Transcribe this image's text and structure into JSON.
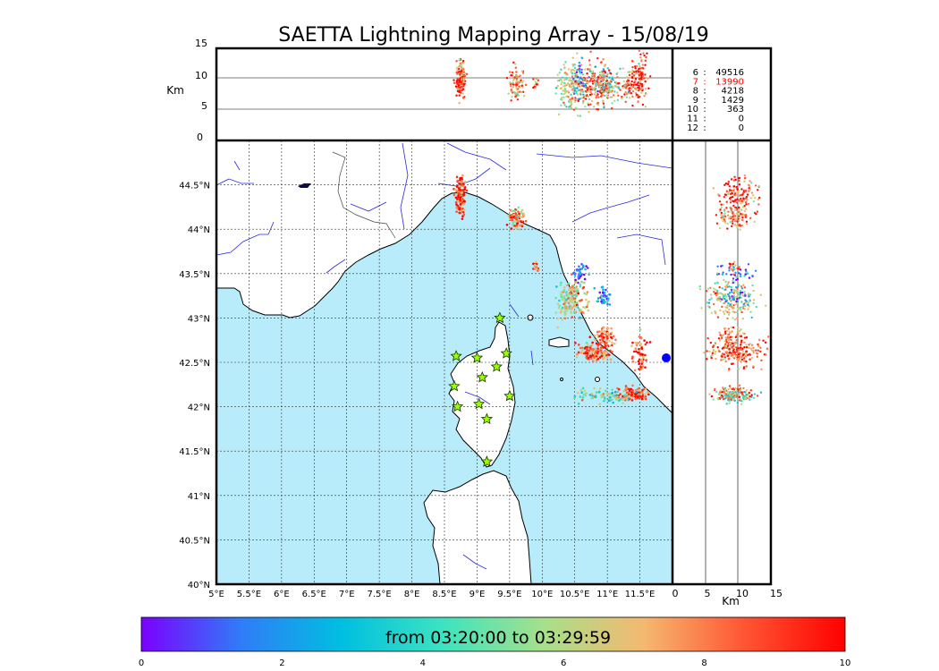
{
  "title": "SAETTA Lightning Mapping Array - 15/08/19",
  "km_label": "Km",
  "colorbar": {
    "label": "from 03:20:00 to 03:29:59",
    "ticks": [
      "0",
      "2",
      "4",
      "6",
      "8",
      "10"
    ],
    "colors": [
      "#7b00ff",
      "#2f7df7",
      "#00bfe0",
      "#3de3c0",
      "#a6e08a",
      "#f5b870",
      "#ff5533",
      "#ff0000"
    ]
  },
  "counts": [
    {
      "k": "6",
      "v": "49516",
      "color": "#000000"
    },
    {
      "k": "7",
      "v": "13990",
      "color": "#ff0000"
    },
    {
      "k": "8",
      "v": "4218",
      "color": "#000000"
    },
    {
      "k": "9",
      "v": "1429",
      "color": "#000000"
    },
    {
      "k": "10",
      "v": "363",
      "color": "#000000"
    },
    {
      "k": "11",
      "v": "0",
      "color": "#000000"
    },
    {
      "k": "12",
      "v": "0",
      "color": "#000000"
    }
  ],
  "chart_data": {
    "type": "scatter",
    "title": "SAETTA Lightning Mapping Array - 15/08/19",
    "map": {
      "lon_range": [
        5.0,
        12.0
      ],
      "lat_range": [
        40.0,
        45.0
      ],
      "x_ticks": [
        "5°E",
        "5.5°E",
        "6°E",
        "6.5°E",
        "7°E",
        "7.5°E",
        "8°E",
        "8.5°E",
        "9°E",
        "9.5°E",
        "10°E",
        "10.5°E",
        "11°E",
        "11.5°E"
      ],
      "y_ticks": [
        "40°N",
        "40.5°N",
        "41°N",
        "41.5°N",
        "42°N",
        "42.5°N",
        "43°N",
        "43.5°N",
        "44°N",
        "44.5°N"
      ],
      "grid": true
    },
    "altitude_axis": {
      "label": "Km",
      "range": [
        0,
        15
      ],
      "ticks": [
        "0",
        "5",
        "10",
        "15"
      ]
    },
    "stations_lonlat": [
      [
        9.35,
        43.0
      ],
      [
        8.68,
        42.57
      ],
      [
        9.0,
        42.55
      ],
      [
        9.45,
        42.6
      ],
      [
        9.3,
        42.45
      ],
      [
        9.08,
        42.33
      ],
      [
        8.65,
        42.23
      ],
      [
        9.5,
        42.12
      ],
      [
        8.7,
        42.0
      ],
      [
        9.03,
        42.03
      ],
      [
        9.15,
        41.86
      ],
      [
        9.15,
        41.38
      ]
    ],
    "clusters": [
      {
        "lon": 8.75,
        "lat": 44.36,
        "alt": 10,
        "time": 9.0,
        "lon_sd": 0.04,
        "lat_sd": 0.1,
        "alt_sd": 1.5,
        "n": 140
      },
      {
        "lon": 9.6,
        "lat": 44.12,
        "alt": 9,
        "time": 7.5,
        "lon_sd": 0.06,
        "lat_sd": 0.06,
        "alt_sd": 1.5,
        "n": 80
      },
      {
        "lon": 10.45,
        "lat": 43.2,
        "alt": 9,
        "time": 6.5,
        "lon_sd": 0.12,
        "lat_sd": 0.12,
        "alt_sd": 2.0,
        "n": 170
      },
      {
        "lon": 10.6,
        "lat": 43.5,
        "alt": 10,
        "time": 2.0,
        "lon_sd": 0.06,
        "lat_sd": 0.05,
        "alt_sd": 1.5,
        "n": 40
      },
      {
        "lon": 10.95,
        "lat": 43.25,
        "alt": 9,
        "time": 1.5,
        "lon_sd": 0.06,
        "lat_sd": 0.05,
        "alt_sd": 1.5,
        "n": 40
      },
      {
        "lon": 9.9,
        "lat": 43.57,
        "alt": 9,
        "time": 8.0,
        "lon_sd": 0.02,
        "lat_sd": 0.03,
        "alt_sd": 0.5,
        "n": 15
      },
      {
        "lon": 10.95,
        "lat": 42.8,
        "alt": 9,
        "time": 8.5,
        "lon_sd": 0.08,
        "lat_sd": 0.05,
        "alt_sd": 1.5,
        "n": 60
      },
      {
        "lon": 10.8,
        "lat": 42.62,
        "alt": 9,
        "time": 8.5,
        "lon_sd": 0.15,
        "lat_sd": 0.05,
        "alt_sd": 2.0,
        "n": 120
      },
      {
        "lon": 11.4,
        "lat": 42.15,
        "alt": 9,
        "time": 8.8,
        "lon_sd": 0.12,
        "lat_sd": 0.04,
        "alt_sd": 1.5,
        "n": 110
      },
      {
        "lon": 10.95,
        "lat": 42.12,
        "alt": 9,
        "time": 5.0,
        "lon_sd": 0.2,
        "lat_sd": 0.04,
        "alt_sd": 1.5,
        "n": 80
      },
      {
        "lon": 11.5,
        "lat": 42.6,
        "alt": 11,
        "time": 9.0,
        "lon_sd": 0.06,
        "lat_sd": 0.1,
        "alt_sd": 2.0,
        "n": 60
      }
    ]
  }
}
